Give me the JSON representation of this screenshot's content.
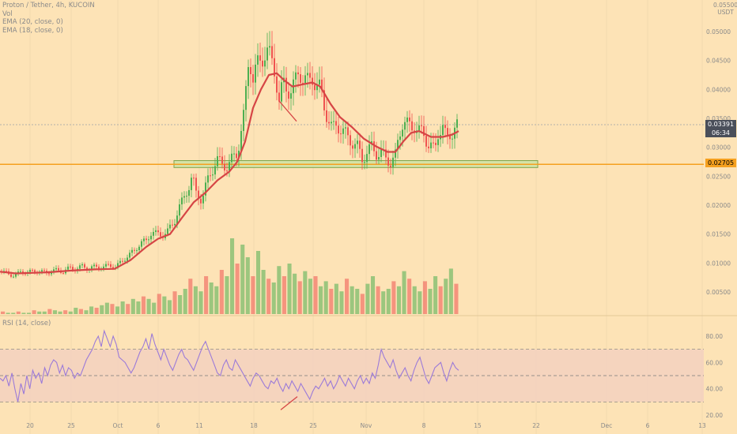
{
  "header": {
    "title": "Proton / Tether, 4h, KUCOIN",
    "indicators": [
      "Vol",
      "EMA (20, close, 0)",
      "EMA (18, close, 0)"
    ],
    "unit_top": "0.05500",
    "unit": "USDT"
  },
  "price_tags": {
    "last": "0.03391",
    "countdown": "06:34",
    "level": "0.02705"
  },
  "rsi_label": "RSI (14, close)",
  "colors": {
    "background": "#fde3b6",
    "up": "#4caf50",
    "down": "#ef5350",
    "ema": "#d64545",
    "level_line": "#f5a01f",
    "zone_fill": "#cfe3a6",
    "rsi_line": "#9c7bd8",
    "rsi_band": "#f3cfc0"
  },
  "chart_data": [
    {
      "type": "candlestick",
      "title": "Proton / Tether, 4h, KUCOIN",
      "y_ticks": [
        "0.05500",
        "0.05000",
        "0.04500",
        "0.04000",
        "0.03500",
        "0.03000",
        "0.02500",
        "0.02000",
        "0.01500",
        "0.01000",
        "0.00500"
      ],
      "ylim": [
        0.0025,
        0.056
      ],
      "x_ticks": [
        "20",
        "25",
        "Oct",
        "6",
        "11",
        "18",
        "25",
        "Nov",
        "8",
        "15",
        "22",
        "Dec",
        "6",
        "13"
      ],
      "horizontal_level": 0.02705,
      "support_zone": [
        0.0265,
        0.0277
      ],
      "close_path": [
        [
          0,
          0.0085
        ],
        [
          8,
          0.0083
        ],
        [
          16,
          0.0078
        ],
        [
          20,
          0.0079
        ],
        [
          26,
          0.0085
        ],
        [
          35,
          0.0084
        ],
        [
          45,
          0.0087
        ],
        [
          60,
          0.0083
        ],
        [
          70,
          0.0088
        ],
        [
          80,
          0.0085
        ],
        [
          88,
          0.0092
        ],
        [
          96,
          0.0089
        ],
        [
          104,
          0.0095
        ],
        [
          112,
          0.009
        ],
        [
          120,
          0.0094
        ],
        [
          130,
          0.0092
        ],
        [
          138,
          0.0097
        ],
        [
          146,
          0.0092
        ],
        [
          155,
          0.0105
        ],
        [
          162,
          0.0112
        ],
        [
          170,
          0.0122
        ],
        [
          178,
          0.0135
        ],
        [
          185,
          0.0138
        ],
        [
          192,
          0.0155
        ],
        [
          198,
          0.015
        ],
        [
          205,
          0.0148
        ],
        [
          212,
          0.0155
        ],
        [
          220,
          0.017
        ],
        [
          226,
          0.0195
        ],
        [
          232,
          0.021
        ],
        [
          238,
          0.023
        ],
        [
          243,
          0.025
        ],
        [
          248,
          0.022
        ],
        [
          255,
          0.021
        ],
        [
          262,
          0.024
        ],
        [
          268,
          0.026
        ],
        [
          274,
          0.028
        ],
        [
          280,
          0.027
        ],
        [
          288,
          0.0268
        ],
        [
          294,
          0.028
        ],
        [
          300,
          0.029
        ],
        [
          305,
          0.033
        ],
        [
          309,
          0.036
        ],
        [
          312,
          0.041
        ],
        [
          315,
          0.046
        ],
        [
          320,
          0.042
        ],
        [
          325,
          0.044
        ],
        [
          330,
          0.045
        ],
        [
          337,
          0.047
        ],
        [
          343,
          0.045
        ],
        [
          348,
          0.043
        ],
        [
          353,
          0.038
        ],
        [
          358,
          0.041
        ],
        [
          363,
          0.04
        ],
        [
          368,
          0.04
        ],
        [
          373,
          0.041
        ],
        [
          378,
          0.043
        ],
        [
          385,
          0.042
        ],
        [
          390,
          0.041
        ],
        [
          395,
          0.042
        ],
        [
          400,
          0.041
        ],
        [
          405,
          0.04
        ],
        [
          410,
          0.037
        ],
        [
          415,
          0.035
        ],
        [
          420,
          0.033
        ],
        [
          426,
          0.034
        ],
        [
          432,
          0.033
        ],
        [
          438,
          0.032
        ],
        [
          445,
          0.031
        ],
        [
          452,
          0.03
        ],
        [
          458,
          0.028
        ],
        [
          463,
          0.029
        ],
        [
          470,
          0.03
        ],
        [
          476,
          0.029
        ],
        [
          482,
          0.029
        ],
        [
          488,
          0.028
        ],
        [
          494,
          0.0275
        ],
        [
          500,
          0.0285
        ],
        [
          505,
          0.032
        ],
        [
          510,
          0.035
        ],
        [
          515,
          0.034
        ],
        [
          520,
          0.033
        ],
        [
          525,
          0.034
        ],
        [
          530,
          0.033
        ],
        [
          535,
          0.032
        ],
        [
          540,
          0.031
        ],
        [
          545,
          0.0305
        ],
        [
          550,
          0.029
        ],
        [
          555,
          0.033
        ],
        [
          560,
          0.034
        ],
        [
          565,
          0.031
        ],
        [
          570,
          0.032
        ],
        [
          575,
          0.034
        ],
        [
          580,
          0.0339
        ]
      ],
      "ema_path": [
        [
          0,
          0.0085
        ],
        [
          20,
          0.0082
        ],
        [
          40,
          0.0083
        ],
        [
          60,
          0.0084
        ],
        [
          90,
          0.0087
        ],
        [
          120,
          0.0089
        ],
        [
          145,
          0.009
        ],
        [
          165,
          0.0105
        ],
        [
          185,
          0.0128
        ],
        [
          200,
          0.0142
        ],
        [
          215,
          0.015
        ],
        [
          230,
          0.0178
        ],
        [
          245,
          0.0205
        ],
        [
          260,
          0.0222
        ],
        [
          275,
          0.0243
        ],
        [
          290,
          0.0258
        ],
        [
          300,
          0.0275
        ],
        [
          310,
          0.031
        ],
        [
          320,
          0.0368
        ],
        [
          330,
          0.04
        ],
        [
          340,
          0.0425
        ],
        [
          350,
          0.0428
        ],
        [
          360,
          0.0415
        ],
        [
          370,
          0.0405
        ],
        [
          380,
          0.0408
        ],
        [
          395,
          0.0412
        ],
        [
          405,
          0.0405
        ],
        [
          418,
          0.0375
        ],
        [
          430,
          0.0352
        ],
        [
          445,
          0.0335
        ],
        [
          460,
          0.0315
        ],
        [
          475,
          0.0302
        ],
        [
          490,
          0.0292
        ],
        [
          500,
          0.0292
        ],
        [
          510,
          0.031
        ],
        [
          520,
          0.0325
        ],
        [
          530,
          0.0328
        ],
        [
          545,
          0.0318
        ],
        [
          560,
          0.0318
        ],
        [
          572,
          0.0322
        ],
        [
          580,
          0.0328
        ]
      ],
      "volume": [
        2,
        1,
        1,
        2,
        1,
        1,
        3,
        2,
        2,
        4,
        3,
        2,
        3,
        2,
        5,
        4,
        3,
        6,
        5,
        7,
        9,
        8,
        6,
        10,
        8,
        12,
        10,
        14,
        12,
        9,
        16,
        14,
        11,
        18,
        15,
        20,
        28,
        22,
        18,
        30,
        25,
        22,
        35,
        30,
        60,
        40,
        55,
        45,
        30,
        50,
        35,
        28,
        25,
        38,
        30,
        40,
        32,
        26,
        34,
        28,
        30,
        22,
        26,
        20,
        24,
        18,
        28,
        22,
        20,
        16,
        24,
        30,
        22,
        18,
        20,
        26,
        22,
        34,
        28,
        22,
        18,
        26,
        20,
        30,
        22,
        28,
        36,
        24
      ]
    },
    {
      "type": "line",
      "title": "RSI (14, close)",
      "y_ticks": [
        "80.00",
        "60.00",
        "40.00",
        "20.00"
      ],
      "ylim": [
        20,
        88
      ],
      "bands": [
        30,
        50,
        70
      ],
      "values": [
        48,
        46,
        50,
        42,
        52,
        40,
        30,
        44,
        36,
        50,
        40,
        54,
        48,
        52,
        44,
        56,
        50,
        58,
        62,
        60,
        52,
        58,
        50,
        56,
        54,
        48,
        52,
        50,
        56,
        62,
        66,
        70,
        76,
        80,
        72,
        84,
        78,
        72,
        80,
        74,
        64,
        62,
        60,
        56,
        52,
        56,
        62,
        68,
        72,
        78,
        70,
        82,
        74,
        68,
        62,
        70,
        64,
        58,
        54,
        60,
        66,
        70,
        64,
        62,
        58,
        54,
        60,
        66,
        72,
        76,
        70,
        64,
        58,
        52,
        50,
        58,
        62,
        56,
        54,
        62,
        58,
        54,
        50,
        46,
        42,
        48,
        52,
        50,
        46,
        42,
        40,
        46,
        44,
        48,
        42,
        38,
        44,
        40,
        46,
        42,
        38,
        44,
        40,
        36,
        32,
        38,
        42,
        40,
        44,
        48,
        42,
        46,
        40,
        44,
        50,
        46,
        42,
        48,
        44,
        40,
        46,
        50,
        44,
        48,
        44,
        52,
        48,
        58,
        70,
        64,
        60,
        56,
        62,
        54,
        48,
        52,
        56,
        50,
        46,
        54,
        60,
        64,
        56,
        48,
        44,
        50,
        56,
        58,
        60,
        52,
        46,
        54,
        60,
        56,
        54
      ]
    }
  ]
}
